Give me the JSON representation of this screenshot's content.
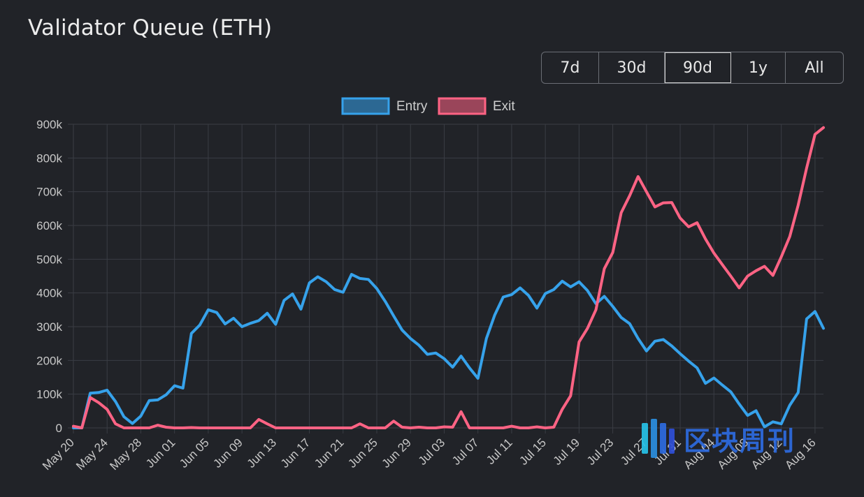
{
  "page": {
    "title": "Validator Queue (ETH)"
  },
  "range_buttons": [
    {
      "label": "7d",
      "active": false
    },
    {
      "label": "30d",
      "active": false
    },
    {
      "label": "90d",
      "active": true
    },
    {
      "label": "1y",
      "active": false
    },
    {
      "label": "All",
      "active": false
    }
  ],
  "watermark": {
    "text": "区块周刊"
  },
  "colors": {
    "background": "#212328",
    "entry": "#36a2eb",
    "exit": "#ff6384",
    "grid": "#3a3d44",
    "tick": "#c8c8c8"
  },
  "chart_data": {
    "type": "line",
    "title": "",
    "xlabel": "",
    "ylabel": "",
    "ylim": [
      0,
      900000
    ],
    "yticks": [
      0,
      100000,
      200000,
      300000,
      400000,
      500000,
      600000,
      700000,
      800000,
      900000
    ],
    "ytick_labels": [
      "0",
      "100k",
      "200k",
      "300k",
      "400k",
      "500k",
      "600k",
      "700k",
      "800k",
      "900k"
    ],
    "xtick_labels": [
      "May 20",
      "May 24",
      "May 28",
      "Jun 01",
      "Jun 05",
      "Jun 09",
      "Jun 13",
      "Jun 17",
      "Jun 21",
      "Jun 25",
      "Jun 29",
      "Jul 03",
      "Jul 07",
      "Jul 11",
      "Jul 15",
      "Jul 19",
      "Jul 23",
      "Jul 27",
      "Jul 31",
      "Aug 04",
      "Aug 08",
      "Aug 12",
      "Aug 16"
    ],
    "grid": true,
    "legend_position": "top-center",
    "series": [
      {
        "name": "Entry",
        "color": "#36a2eb",
        "values": [
          0,
          0,
          103000,
          105000,
          112000,
          78000,
          33000,
          13000,
          35000,
          81000,
          83000,
          98000,
          125000,
          118000,
          280000,
          305000,
          350000,
          342000,
          308000,
          325000,
          300000,
          310000,
          318000,
          340000,
          307000,
          378000,
          397000,
          352000,
          430000,
          448000,
          433000,
          410000,
          402000,
          455000,
          443000,
          440000,
          413000,
          375000,
          332000,
          290000,
          265000,
          245000,
          218000,
          222000,
          205000,
          180000,
          213000,
          178000,
          147000,
          265000,
          335000,
          388000,
          395000,
          415000,
          393000,
          355000,
          398000,
          410000,
          435000,
          418000,
          433000,
          407000,
          368000,
          390000,
          360000,
          327000,
          309000,
          265000,
          228000,
          257000,
          262000,
          243000,
          220000,
          198000,
          178000,
          132000,
          148000,
          127000,
          107000,
          71000,
          37000,
          51000,
          3000,
          18000,
          12000,
          67000,
          105000,
          323000,
          345000,
          295000
        ]
      },
      {
        "name": "Exit",
        "color": "#ff6384",
        "values": [
          5000,
          0,
          90000,
          75000,
          55000,
          12000,
          0,
          0,
          0,
          0,
          8000,
          2000,
          0,
          0,
          1000,
          0,
          0,
          0,
          0,
          0,
          0,
          0,
          25000,
          12000,
          0,
          0,
          0,
          0,
          0,
          0,
          0,
          0,
          0,
          0,
          12000,
          0,
          0,
          0,
          20000,
          2000,
          0,
          2000,
          0,
          0,
          3000,
          2000,
          48000,
          0,
          0,
          0,
          0,
          0,
          5000,
          0,
          0,
          3000,
          0,
          2000,
          55000,
          95000,
          255000,
          295000,
          350000,
          472000,
          520000,
          638000,
          688000,
          745000,
          700000,
          655000,
          667000,
          668000,
          622000,
          596000,
          608000,
          560000,
          518000,
          484000,
          450000,
          415000,
          450000,
          466000,
          479000,
          452000,
          507000,
          567000,
          660000,
          770000,
          870000,
          890000
        ]
      }
    ]
  }
}
